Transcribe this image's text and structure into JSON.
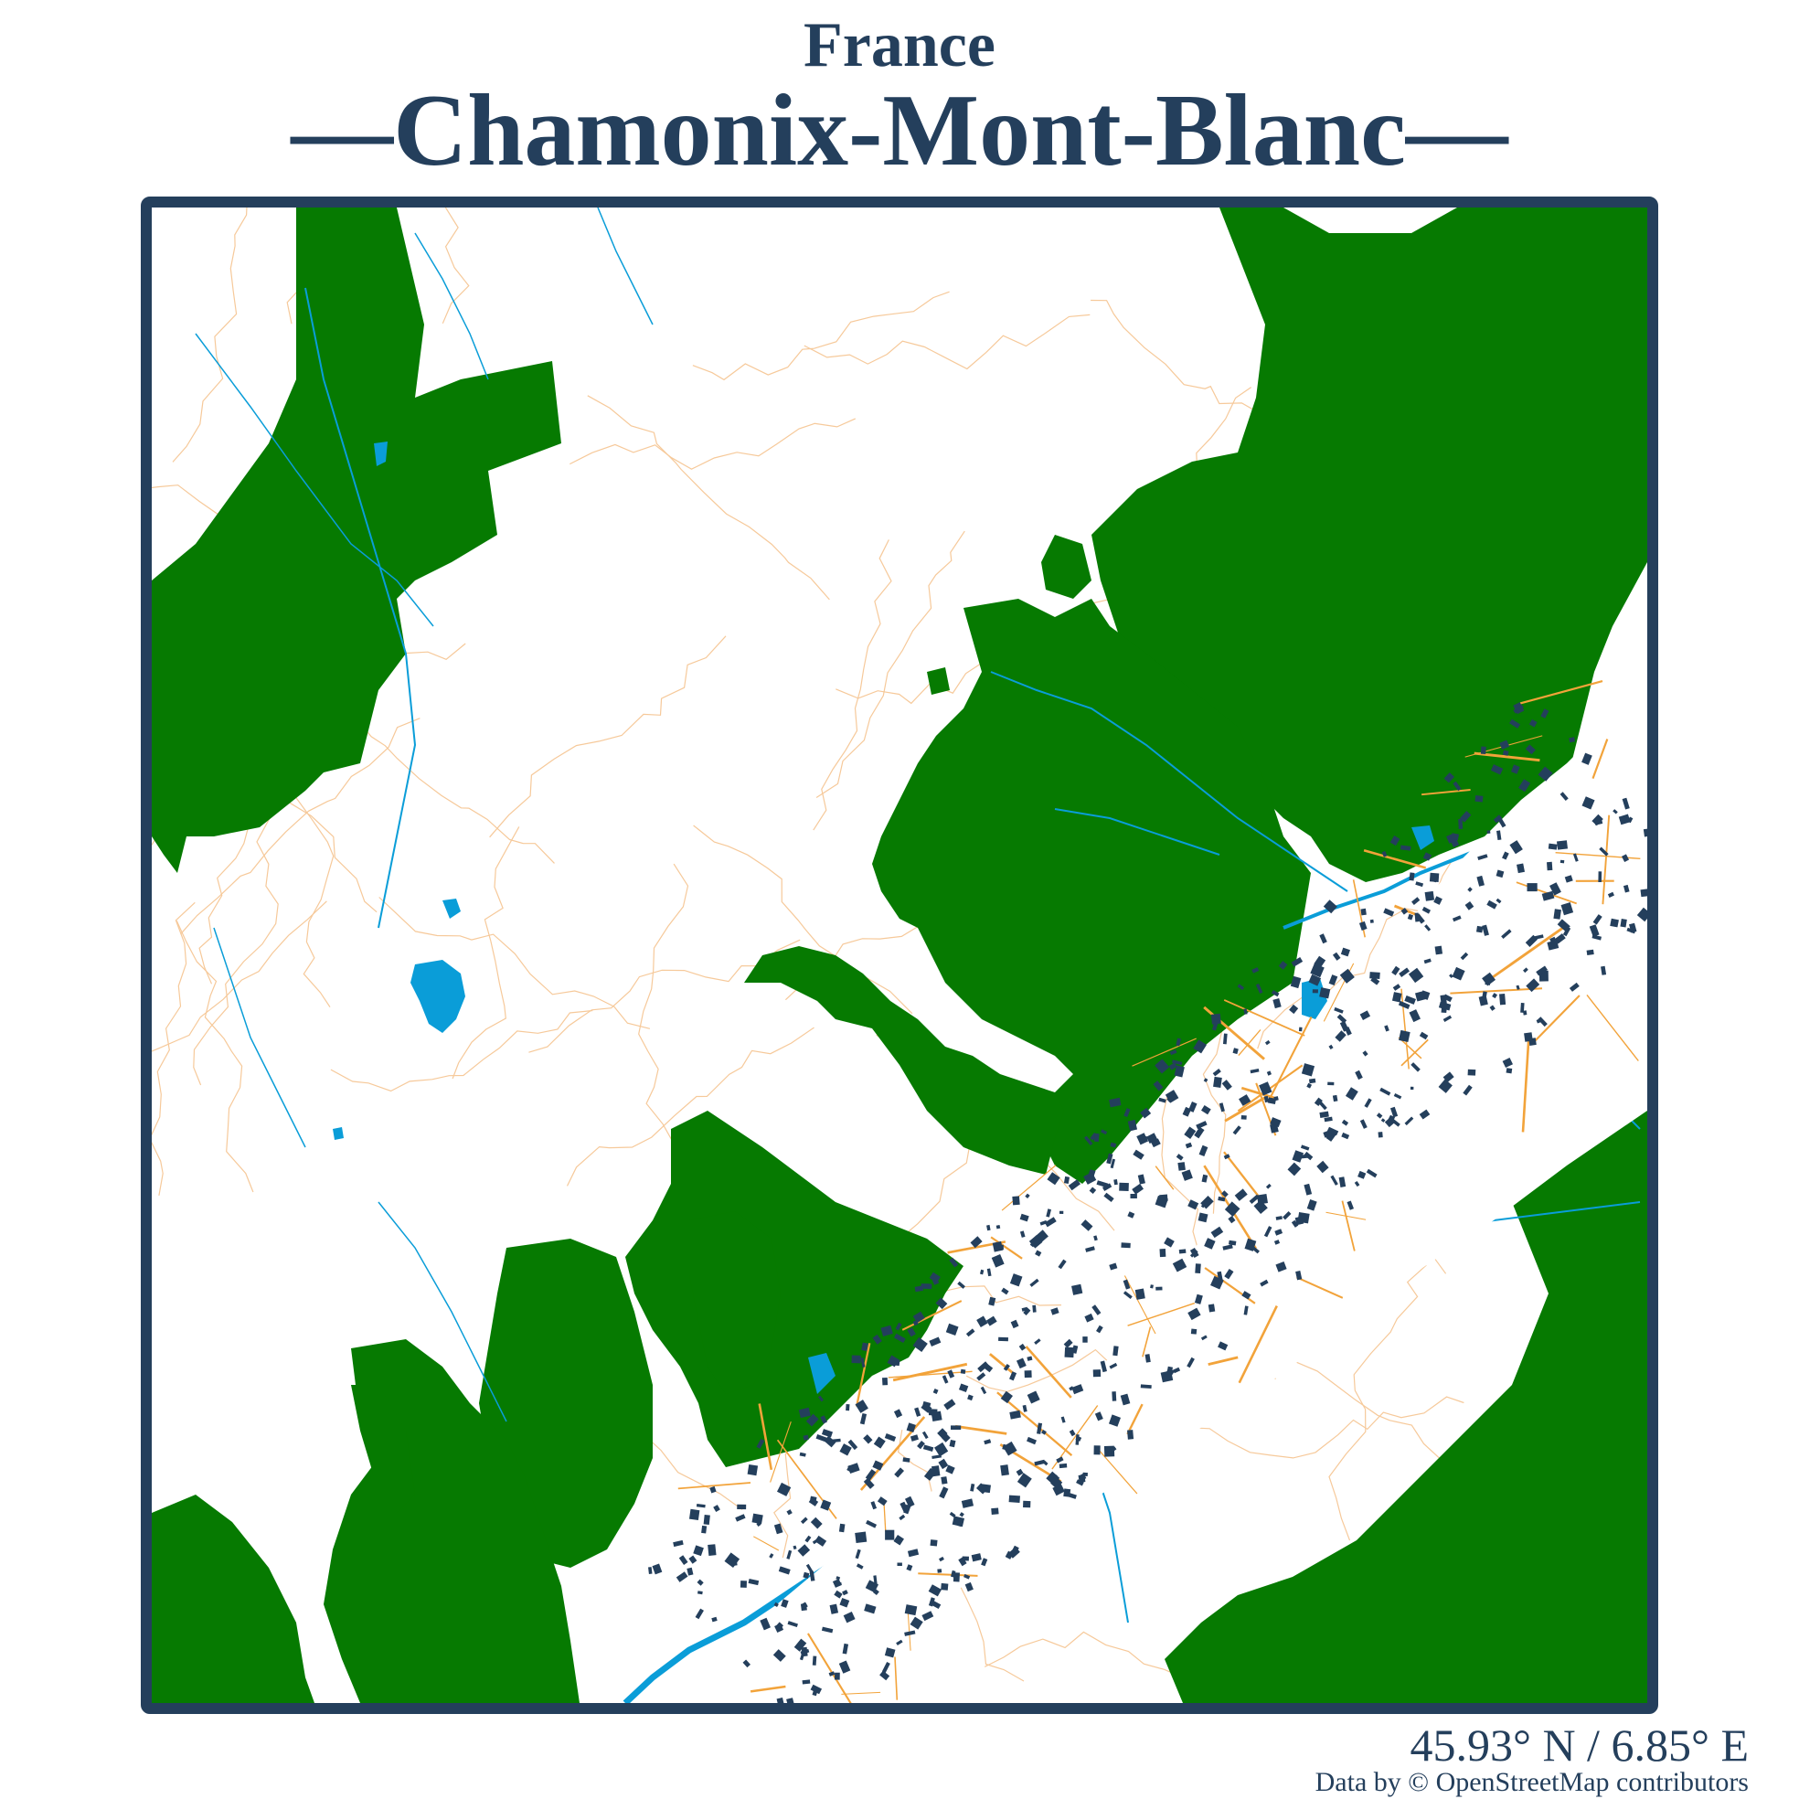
{
  "header": {
    "country": "France",
    "city": "—Chamonix-Mont-Blanc—"
  },
  "footer": {
    "coordinates": "45.93° N / 6.85° E",
    "attribution": "Data by © OpenStreetMap contributors"
  },
  "colors": {
    "text": "#243f5c",
    "frame": "#243f5c",
    "background": "#ffffff",
    "forest": "#067a01",
    "water": "#0a9dd8",
    "roads": "#f2a33a",
    "contours": "#f6c99a",
    "buildings": "#243f5c"
  },
  "map": {
    "layers": [
      "forest",
      "water",
      "roads",
      "contours",
      "buildings"
    ]
  }
}
